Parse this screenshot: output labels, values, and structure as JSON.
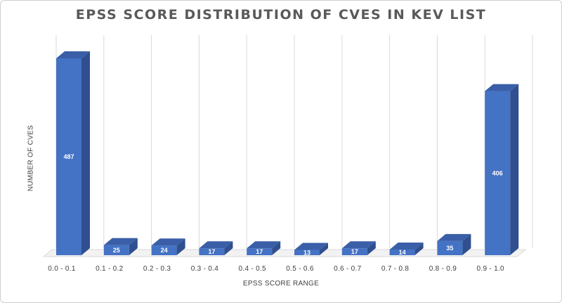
{
  "chart_data": {
    "type": "bar",
    "title": "EPSS SCORE DISTRIBUTION OF CVES IN KEV LIST",
    "xlabel": "EPSS SCORE RANGE",
    "ylabel": "NUMBER OF CVES",
    "categories": [
      "0.0 - 0.1",
      "0.1 - 0.2",
      "0.2 - 0.3",
      "0.3 - 0.4",
      "0.4 - 0.5",
      "0.5 - 0.6",
      "0.6 - 0.7",
      "0.7 - 0.8",
      "0.8 - 0.9",
      "0.9 - 1.0"
    ],
    "values": [
      487,
      25,
      24,
      17,
      17,
      13,
      17,
      14,
      35,
      406
    ],
    "ylim": [
      0,
      487
    ],
    "grid": true,
    "legend": "none",
    "style": "3d-column",
    "colors": {
      "front": "#4472c4",
      "side": "#2f4f8f",
      "top": "#3a5fa8"
    }
  }
}
